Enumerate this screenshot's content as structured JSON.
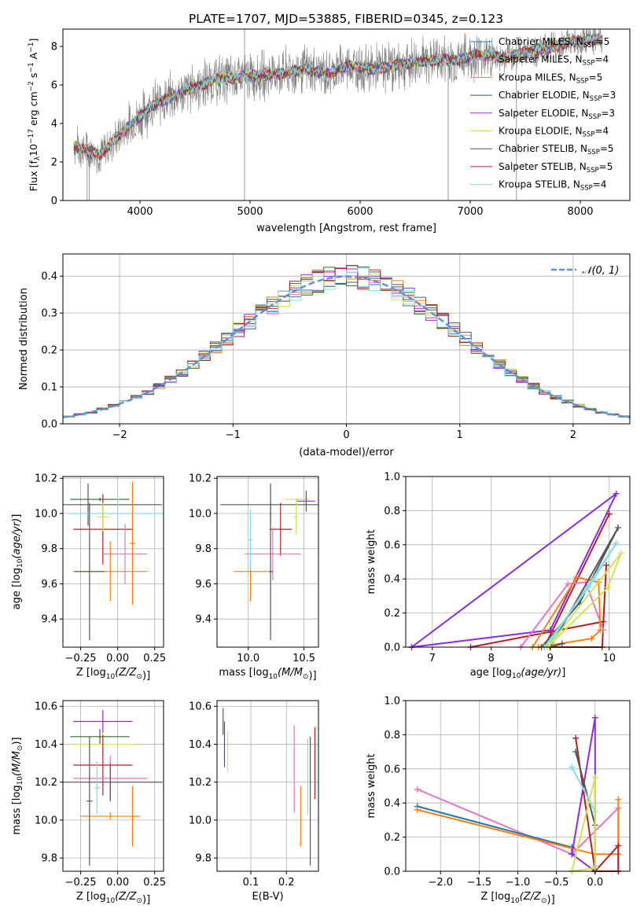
{
  "figure": {
    "title": "PLATE=1707, MJD=53885, FIBERID=0345, z=0.123"
  },
  "colors": {
    "chabrier_miles": "#1f77b4",
    "salpeter_miles": "#e377c2",
    "kroupa_miles": "#ff7f0e",
    "chabrier_elodie": "#2e6b2e",
    "salpeter_elodie": "#8a2be2",
    "kroupa_elodie": "#d4e157",
    "chabrier_stelib": "#555555",
    "salpeter_stelib": "#b22222",
    "kroupa_stelib": "#80deea",
    "data": "#808080",
    "gaussian": "#5b8fd6"
  },
  "chart_data": [
    {
      "id": "spectrum",
      "type": "line",
      "xlabel": "wavelength [Angstrom, rest frame]",
      "ylabel_parts": [
        "Flux [f",
        "λ",
        "10",
        "−17",
        " erg cm",
        "−2",
        " s",
        "−1",
        " A",
        "−1",
        "]"
      ],
      "xlim": [
        3300,
        8450
      ],
      "ylim": [
        0,
        8.9
      ],
      "xticks": [
        4000,
        5000,
        6000,
        7000,
        8000
      ],
      "yticks": [
        0,
        2,
        4,
        6,
        8
      ],
      "grid": false,
      "legend_placement": "right",
      "legend": [
        {
          "name": "Chabrier MILES, N",
          "sub": "SSP",
          "suffix": "=5",
          "color_key": "chabrier_miles"
        },
        {
          "name": "Salpeter MILES, N",
          "sub": "SSP",
          "suffix": "=4",
          "color_key": "salpeter_miles"
        },
        {
          "name": "Kroupa MILES, N",
          "sub": "SSP",
          "suffix": "=5",
          "color_key": "kroupa_miles"
        },
        {
          "name": "Chabrier ELODIE, N",
          "sub": "SSP",
          "suffix": "=3",
          "color_key": "chabrier_elodie"
        },
        {
          "name": "Salpeter ELODIE, N",
          "sub": "SSP",
          "suffix": "=3",
          "color_key": "salpeter_elodie"
        },
        {
          "name": "Kroupa ELODIE, N",
          "sub": "SSP",
          "suffix": "=4",
          "color_key": "kroupa_elodie"
        },
        {
          "name": "Chabrier STELIB, N",
          "sub": "SSP",
          "suffix": "=5",
          "color_key": "chabrier_stelib"
        },
        {
          "name": "Salpeter STELIB, N",
          "sub": "SSP",
          "suffix": "=5",
          "color_key": "salpeter_stelib"
        },
        {
          "name": "Kroupa STELIB, N",
          "sub": "SSP",
          "suffix": "=4",
          "color_key": "kroupa_stelib"
        }
      ],
      "continuum": {
        "x": [
          3400,
          3500,
          3650,
          3800,
          3950,
          4100,
          4300,
          4500,
          4700,
          4900,
          5100,
          5300,
          5500,
          5700,
          5900,
          6100,
          6300,
          6500,
          6700,
          6900,
          7100,
          7300,
          7500,
          7700,
          7900,
          8100,
          8200
        ],
        "y": [
          2.9,
          2.6,
          2.4,
          3.3,
          4.1,
          4.9,
          5.4,
          5.9,
          6.3,
          6.4,
          6.5,
          6.6,
          6.8,
          6.6,
          7.0,
          6.8,
          7.0,
          7.2,
          7.3,
          7.3,
          7.6,
          7.4,
          7.7,
          7.9,
          8.2,
          8.4,
          8.3
        ]
      },
      "data_spikes": [
        {
          "x": 3520,
          "y0": 0,
          "y1": 3.4
        },
        {
          "x": 3540,
          "y0": 0,
          "y1": 3.0
        },
        {
          "x": 4950,
          "y0": 0,
          "y1": 8.9
        },
        {
          "x": 6800,
          "y0": 0,
          "y1": 8.0
        },
        {
          "x": 7420,
          "y0": 0,
          "y1": 8.5
        }
      ]
    },
    {
      "id": "residuals",
      "type": "bar",
      "xlabel": "(data-model)/error",
      "ylabel": "Normed distribution",
      "xlim": [
        -2.5,
        2.5
      ],
      "ylim": [
        0,
        0.46
      ],
      "xticks": [
        -2,
        -1,
        0,
        1,
        2
      ],
      "yticks": [
        0.0,
        0.1,
        0.2,
        0.3,
        0.4
      ],
      "ytick_labels": [
        "0.0",
        "0.1",
        "0.2",
        "0.3",
        "0.4"
      ],
      "xtick_labels": [
        "−2",
        "−1",
        "0",
        "1",
        "2"
      ],
      "grid": true,
      "legend_placement": "top-right",
      "legend": [
        {
          "name": "𝒩(0, 1)",
          "color_key": "gaussian"
        }
      ],
      "bin_width": 0.1
    },
    {
      "id": "age-vs-Z",
      "type": "scatter",
      "xlabel": "Z [log",
      "xlabel_sub": "10",
      "xlabel_mid": "(Z/Z",
      "xlabel_sun": "⊙",
      "xlabel_end": ")]",
      "ylabel": "age  [log10(age/yr)]",
      "xlim": [
        -0.37,
        0.31
      ],
      "ylim": [
        9.24,
        10.21
      ],
      "xticks": [
        -0.25,
        0.0,
        0.25
      ],
      "xtick_labels": [
        "−0.25",
        "0.00",
        "0.25"
      ],
      "yticks": [
        9.4,
        9.6,
        9.8,
        10.0,
        10.2
      ],
      "ytick_labels": [
        "9.4",
        "9.6",
        "9.8",
        "10.0",
        "10.2"
      ],
      "grid": true,
      "points": [
        {
          "x": -0.12,
          "y": 10.08,
          "xerr": 0.2,
          "yerr": 0.01,
          "color_key": "chabrier_elodie"
        },
        {
          "x": -0.2,
          "y": 10.05,
          "xerr": 0.5,
          "yerr": 0.12,
          "color_key": "chabrier_stelib"
        },
        {
          "x": 0.0,
          "y": 10.0,
          "xerr": 0.32,
          "yerr": 0.1,
          "color_key": "kroupa_stelib"
        },
        {
          "x": -0.1,
          "y": 9.91,
          "xerr": 0.2,
          "yerr": 0.2,
          "color_key": "salpeter_stelib"
        },
        {
          "x": 0.05,
          "y": 9.77,
          "xerr": 0.15,
          "yerr": 0.17,
          "color_key": "salpeter_miles"
        },
        {
          "x": -0.05,
          "y": 9.67,
          "xerr": 0.25,
          "yerr": 0.17,
          "color_key": "kroupa_miles"
        },
        {
          "x": -0.19,
          "y": 9.67,
          "xerr": 0.1,
          "yerr": 0.39,
          "color_key": "chabrier_stelib"
        },
        {
          "x": -0.1,
          "y": 9.98,
          "xerr": 0.04,
          "yerr": 0.08,
          "color_key": "kroupa_elodie"
        },
        {
          "x": 0.1,
          "y": 9.83,
          "xerr": 0.02,
          "yerr": 0.35,
          "color_key": "kroupa_miles"
        }
      ]
    },
    {
      "id": "age-vs-mass",
      "type": "scatter",
      "xlabel": "mass [log",
      "xlabel_sub": "10",
      "xlabel_mid": "(M/M",
      "xlabel_sun": "⊙",
      "xlabel_end": ")]",
      "xlim": [
        9.72,
        10.63
      ],
      "ylim": [
        9.24,
        10.21
      ],
      "xticks": [
        10.0,
        10.5
      ],
      "xtick_labels": [
        "10.0",
        "10.5"
      ],
      "yticks": [
        9.4,
        9.6,
        9.8,
        10.0,
        10.2
      ],
      "ytick_labels": [
        "9.4",
        "9.6",
        "9.8",
        "10.0",
        "10.2"
      ],
      "grid": true,
      "points": [
        {
          "x": 10.44,
          "y": 10.08,
          "xerr": 0.12,
          "yerr": 0.01,
          "color_key": "kroupa_elodie"
        },
        {
          "x": 10.52,
          "y": 10.07,
          "xerr": 0.08,
          "yerr": 0.06,
          "color_key": "salpeter_elodie"
        },
        {
          "x": 10.2,
          "y": 10.05,
          "xerr": 0.45,
          "yerr": 0.12,
          "color_key": "chabrier_stelib"
        },
        {
          "x": 10.29,
          "y": 9.91,
          "xerr": 0.1,
          "yerr": 0.15,
          "color_key": "salpeter_stelib"
        },
        {
          "x": 10.22,
          "y": 9.77,
          "xerr": 0.25,
          "yerr": 0.15,
          "color_key": "salpeter_miles"
        },
        {
          "x": 10.02,
          "y": 9.67,
          "xerr": 0.15,
          "yerr": 0.17,
          "color_key": "kroupa_miles"
        },
        {
          "x": 10.2,
          "y": 9.67,
          "xerr": 0.02,
          "yerr": 0.39,
          "color_key": "chabrier_stelib"
        },
        {
          "x": 10.02,
          "y": 9.85,
          "xerr": 0.02,
          "yerr": 0.17,
          "color_key": "kroupa_stelib"
        },
        {
          "x": 10.43,
          "y": 9.98,
          "xerr": 0.02,
          "yerr": 0.1,
          "color_key": "kroupa_elodie"
        }
      ]
    },
    {
      "id": "massweight-vs-age",
      "type": "line",
      "xlabel": "age  [log10(age/yr)]",
      "ylabel": "mass weight",
      "xlim": [
        6.55,
        10.35
      ],
      "ylim": [
        0,
        1.0
      ],
      "xticks": [
        7,
        8,
        9,
        10
      ],
      "xtick_labels": [
        "7",
        "8",
        "9",
        "10"
      ],
      "yticks": [
        0.0,
        0.2,
        0.4,
        0.6,
        0.8,
        1.0
      ],
      "ytick_labels": [
        "0.0",
        "0.2",
        "0.4",
        "0.6",
        "0.8",
        "1.0"
      ],
      "grid": true,
      "series": [
        {
          "color_key": "salpeter_elodie",
          "x": [
            6.65,
            9.0,
            10.12,
            6.65
          ],
          "y": [
            0.0,
            0.1,
            0.9,
            0.0
          ]
        },
        {
          "color_key": "salpeter_stelib",
          "x": [
            7.65,
            9.9,
            9.95,
            9.88,
            8.9,
            10.0
          ],
          "y": [
            0.0,
            0.15,
            0.48,
            0.0,
            0.0,
            0.78
          ]
        },
        {
          "color_key": "salpeter_miles",
          "x": [
            8.5,
            9.3,
            9.6,
            9.9
          ],
          "y": [
            0.0,
            0.37,
            0.38,
            0.1
          ]
        },
        {
          "color_key": "kroupa_miles",
          "x": [
            8.7,
            9.45,
            9.82,
            9.85,
            9.7,
            8.8
          ],
          "y": [
            0.0,
            0.41,
            0.38,
            0.1,
            0.05,
            0.0
          ]
        },
        {
          "color_key": "chabrier_stelib",
          "x": [
            8.85,
            9.5,
            10.15,
            9.0,
            9.2
          ],
          "y": [
            0.0,
            0.26,
            0.7,
            0.0,
            0.02
          ]
        },
        {
          "color_key": "kroupa_stelib",
          "x": [
            8.9,
            9.65,
            10.12,
            9.0
          ],
          "y": [
            0.0,
            0.35,
            0.61,
            0.03
          ]
        },
        {
          "color_key": "kroupa_elodie",
          "x": [
            8.95,
            9.98,
            10.2,
            9.0
          ],
          "y": [
            0.0,
            0.35,
            0.55,
            0.02
          ]
        }
      ]
    },
    {
      "id": "mass-vs-Z",
      "type": "scatter",
      "xlabel": "Z [log",
      "xlabel_sub": "10",
      "xlabel_mid": "(Z/Z",
      "xlabel_sun": "⊙",
      "xlabel_end": ")]",
      "ylabel": "mass [log10(M/M⊙)]",
      "xlim": [
        -0.37,
        0.31
      ],
      "ylim": [
        9.73,
        10.63
      ],
      "xticks": [
        -0.25,
        0.0,
        0.25
      ],
      "xtick_labels": [
        "−0.25",
        "0.00",
        "0.25"
      ],
      "yticks": [
        9.8,
        10.0,
        10.2,
        10.4,
        10.6
      ],
      "ytick_labels": [
        "9.8",
        "10.0",
        "10.2",
        "10.4",
        "10.6"
      ],
      "grid": true,
      "points": [
        {
          "x": -0.1,
          "y": 10.52,
          "xerr": 0.2,
          "yerr": 0.06,
          "color_key": "salpeter_elodie"
        },
        {
          "x": -0.12,
          "y": 10.44,
          "xerr": 0.2,
          "yerr": 0.04,
          "color_key": "chabrier_elodie"
        },
        {
          "x": -0.1,
          "y": 10.4,
          "xerr": 0.22,
          "yerr": 0.06,
          "color_key": "kroupa_elodie"
        },
        {
          "x": -0.1,
          "y": 10.29,
          "xerr": 0.2,
          "yerr": 0.16,
          "color_key": "salpeter_stelib"
        },
        {
          "x": -0.05,
          "y": 10.22,
          "xerr": 0.25,
          "yerr": 0.12,
          "color_key": "salpeter_miles"
        },
        {
          "x": -0.05,
          "y": 10.2,
          "xerr": 0.35,
          "yerr": 0.1,
          "color_key": "chabrier_stelib"
        },
        {
          "x": -0.05,
          "y": 10.02,
          "xerr": 0.2,
          "yerr": 0.02,
          "color_key": "kroupa_miles"
        },
        {
          "x": -0.19,
          "y": 10.1,
          "xerr": 0.02,
          "yerr": 0.34,
          "color_key": "chabrier_stelib"
        },
        {
          "x": 0.1,
          "y": 10.02,
          "xerr": 0.02,
          "yerr": 0.16,
          "color_key": "kroupa_miles"
        },
        {
          "x": -0.14,
          "y": 10.17,
          "xerr": 0.02,
          "yerr": 0.14,
          "color_key": "kroupa_stelib"
        }
      ]
    },
    {
      "id": "mass-vs-EBV",
      "type": "scatter",
      "xlabel": "E(B-V)",
      "xlim": [
        0.005,
        0.29
      ],
      "ylim": [
        9.73,
        10.63
      ],
      "xticks": [
        0.1,
        0.2
      ],
      "xtick_labels": [
        "0.1",
        "0.2"
      ],
      "yticks": [
        9.8,
        10.0,
        10.2,
        10.4,
        10.6
      ],
      "ytick_labels": [
        "9.8",
        "10.0",
        "10.2",
        "10.4",
        "10.6"
      ],
      "grid": true,
      "points": [
        {
          "x": 0.022,
          "y": 10.52,
          "xerr": 0,
          "yerr": 0.07,
          "color_key": "salpeter_elodie"
        },
        {
          "x": 0.026,
          "y": 10.4,
          "xerr": 0,
          "yerr": 0.12,
          "color_key": "chabrier_stelib"
        },
        {
          "x": 0.035,
          "y": 10.36,
          "xerr": 0,
          "yerr": 0.11,
          "color_key": "kroupa_elodie"
        },
        {
          "x": 0.222,
          "y": 10.27,
          "xerr": 0,
          "yerr": 0.23,
          "color_key": "salpeter_miles"
        },
        {
          "x": 0.24,
          "y": 10.02,
          "xerr": 0,
          "yerr": 0.16,
          "color_key": "kroupa_miles"
        },
        {
          "x": 0.26,
          "y": 10.23,
          "xerr": 0,
          "yerr": 0.2,
          "color_key": "kroupa_stelib"
        },
        {
          "x": 0.267,
          "y": 10.1,
          "xerr": 0,
          "yerr": 0.34,
          "color_key": "chabrier_stelib"
        },
        {
          "x": 0.28,
          "y": 10.3,
          "xerr": 0,
          "yerr": 0.19,
          "color_key": "salpeter_stelib"
        }
      ]
    },
    {
      "id": "massweight-vs-Z",
      "type": "line",
      "xlabel": "Z [log",
      "xlabel_sub": "10",
      "xlabel_mid": "(Z/Z",
      "xlabel_sun": "⊙",
      "xlabel_end": ")]",
      "ylabel": "mass weight",
      "xlim": [
        -2.45,
        0.45
      ],
      "ylim": [
        0,
        1.0
      ],
      "xticks": [
        -2.0,
        -1.5,
        -1.0,
        -0.5,
        0.0
      ],
      "xtick_labels": [
        "−2.0",
        "−1.5",
        "−1.0",
        "−0.5",
        "0.0"
      ],
      "yticks": [
        0.0,
        0.2,
        0.4,
        0.6,
        0.8,
        1.0
      ],
      "ytick_labels": [
        "0.0",
        "0.2",
        "0.4",
        "0.6",
        "0.8",
        "1.0"
      ],
      "grid": true,
      "series": [
        {
          "color_key": "salpeter_miles",
          "x": [
            -2.3,
            -0.3,
            0.3,
            0.3
          ],
          "y": [
            0.48,
            0.1,
            0.37,
            0.1
          ]
        },
        {
          "color_key": "chabrier_miles",
          "x": [
            -2.3,
            -0.3,
            -0.3
          ],
          "y": [
            0.38,
            0.14,
            0.1
          ]
        },
        {
          "color_key": "kroupa_miles",
          "x": [
            -2.3,
            0.0,
            0.3,
            0.3,
            0.3
          ],
          "y": [
            0.36,
            0.1,
            0.1,
            0.42,
            0.0
          ]
        },
        {
          "color_key": "salpeter_elodie",
          "x": [
            -0.3,
            0.0,
            0.0,
            -0.3
          ],
          "y": [
            0.1,
            0.9,
            0.0,
            0.1
          ]
        },
        {
          "color_key": "salpeter_stelib",
          "x": [
            -0.25,
            0.0,
            0.3,
            0.3,
            0.0
          ],
          "y": [
            0.78,
            0.0,
            0.15,
            0.0,
            0.0
          ]
        },
        {
          "color_key": "chabrier_stelib",
          "x": [
            -0.25,
            0.0,
            0.0,
            -0.0
          ],
          "y": [
            0.7,
            0.27,
            0.0,
            0.02
          ]
        },
        {
          "color_key": "kroupa_stelib",
          "x": [
            -0.3,
            0.0,
            0.0
          ],
          "y": [
            0.61,
            0.35,
            0.03
          ]
        },
        {
          "color_key": "kroupa_elodie",
          "x": [
            -0.3,
            0.0,
            0.0,
            -0.3
          ],
          "y": [
            0.0,
            0.55,
            0.02,
            0.0
          ]
        }
      ]
    }
  ]
}
